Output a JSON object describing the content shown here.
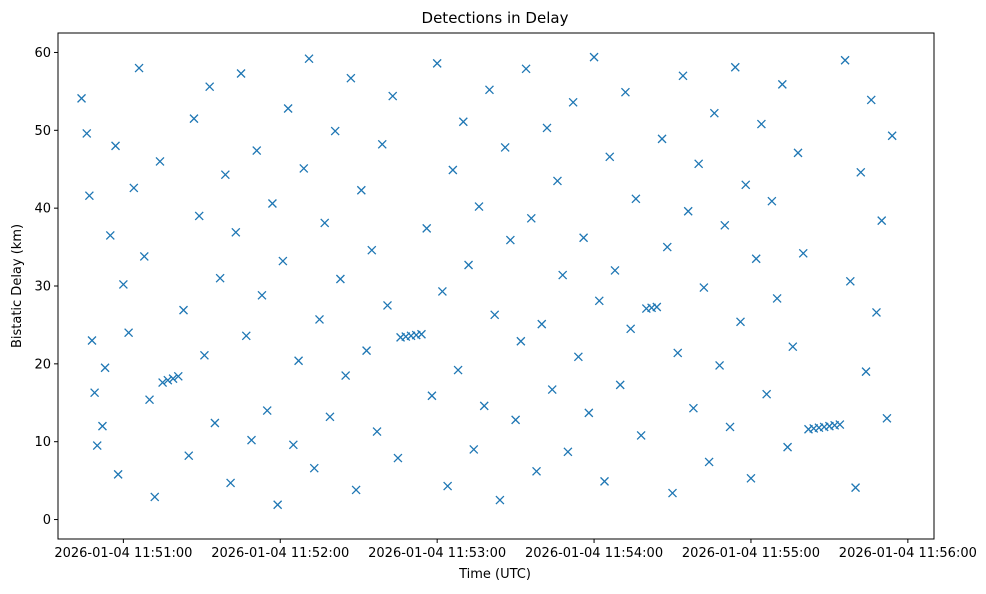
{
  "chart_data": {
    "type": "scatter",
    "title": "Detections in Delay",
    "xlabel": "Time (UTC)",
    "ylabel": "Bistatic Delay (km)",
    "x_axis_type": "time",
    "x_date": "2026-01-04",
    "xlim": [
      "11:50:35",
      "11:56:10"
    ],
    "ylim": [
      -2.5,
      62.5
    ],
    "x_ticks": [
      "2026-01-04 11:51:00",
      "2026-01-04 11:52:00",
      "2026-01-04 11:53:00",
      "2026-01-04 11:54:00",
      "2026-01-04 11:55:00",
      "2026-01-04 11:56:00"
    ],
    "y_ticks": [
      "0",
      "10",
      "20",
      "30",
      "40",
      "50",
      "60"
    ],
    "marker": "x",
    "color": "#1f77b4",
    "grid": false,
    "series": [
      {
        "points": [
          [
            "11:50:44",
            54.1
          ],
          [
            "11:50:46",
            49.6
          ],
          [
            "11:50:47",
            41.6
          ],
          [
            "11:50:48",
            23.0
          ],
          [
            "11:50:49",
            16.3
          ],
          [
            "11:50:50",
            9.5
          ],
          [
            "11:50:52",
            12.0
          ],
          [
            "11:50:53",
            19.5
          ],
          [
            "11:50:55",
            36.5
          ],
          [
            "11:50:57",
            48.0
          ],
          [
            "11:50:58",
            5.8
          ],
          [
            "11:51:00",
            30.2
          ],
          [
            "11:51:02",
            24.0
          ],
          [
            "11:51:04",
            42.6
          ],
          [
            "11:51:06",
            58.0
          ],
          [
            "11:51:08",
            33.8
          ],
          [
            "11:51:10",
            15.4
          ],
          [
            "11:51:12",
            2.9
          ],
          [
            "11:51:14",
            46.0
          ],
          [
            "11:51:15",
            17.6
          ],
          [
            "11:51:17",
            17.9
          ],
          [
            "11:51:19",
            18.1
          ],
          [
            "11:51:21",
            18.4
          ],
          [
            "11:51:23",
            26.9
          ],
          [
            "11:51:25",
            8.2
          ],
          [
            "11:51:27",
            51.5
          ],
          [
            "11:51:29",
            39.0
          ],
          [
            "11:51:31",
            21.1
          ],
          [
            "11:51:33",
            55.6
          ],
          [
            "11:51:35",
            12.4
          ],
          [
            "11:51:37",
            31.0
          ],
          [
            "11:51:39",
            44.3
          ],
          [
            "11:51:41",
            4.7
          ],
          [
            "11:51:43",
            36.9
          ],
          [
            "11:51:45",
            57.3
          ],
          [
            "11:51:47",
            23.6
          ],
          [
            "11:51:49",
            10.2
          ],
          [
            "11:51:51",
            47.4
          ],
          [
            "11:51:53",
            28.8
          ],
          [
            "11:51:55",
            14.0
          ],
          [
            "11:51:57",
            40.6
          ],
          [
            "11:51:59",
            1.9
          ],
          [
            "11:52:01",
            33.2
          ],
          [
            "11:52:03",
            52.8
          ],
          [
            "11:52:05",
            9.6
          ],
          [
            "11:52:07",
            20.4
          ],
          [
            "11:52:09",
            45.1
          ],
          [
            "11:52:11",
            59.2
          ],
          [
            "11:52:13",
            6.6
          ],
          [
            "11:52:15",
            25.7
          ],
          [
            "11:52:17",
            38.1
          ],
          [
            "11:52:19",
            13.2
          ],
          [
            "11:52:21",
            49.9
          ],
          [
            "11:52:23",
            30.9
          ],
          [
            "11:52:25",
            18.5
          ],
          [
            "11:52:27",
            56.7
          ],
          [
            "11:52:29",
            3.8
          ],
          [
            "11:52:31",
            42.3
          ],
          [
            "11:52:33",
            21.7
          ],
          [
            "11:52:35",
            34.6
          ],
          [
            "11:52:37",
            11.3
          ],
          [
            "11:52:39",
            48.2
          ],
          [
            "11:52:41",
            27.5
          ],
          [
            "11:52:43",
            54.4
          ],
          [
            "11:52:45",
            7.9
          ],
          [
            "11:52:46",
            23.4
          ],
          [
            "11:52:48",
            23.5
          ],
          [
            "11:52:50",
            23.6
          ],
          [
            "11:52:52",
            23.7
          ],
          [
            "11:52:54",
            23.8
          ],
          [
            "11:52:56",
            37.4
          ],
          [
            "11:52:58",
            15.9
          ],
          [
            "11:53:00",
            58.6
          ],
          [
            "11:53:02",
            29.3
          ],
          [
            "11:53:04",
            4.3
          ],
          [
            "11:53:06",
            44.9
          ],
          [
            "11:53:08",
            19.2
          ],
          [
            "11:53:10",
            51.1
          ],
          [
            "11:53:12",
            32.7
          ],
          [
            "11:53:14",
            9.0
          ],
          [
            "11:53:16",
            40.2
          ],
          [
            "11:53:18",
            14.6
          ],
          [
            "11:53:20",
            55.2
          ],
          [
            "11:53:22",
            26.3
          ],
          [
            "11:53:24",
            2.5
          ],
          [
            "11:53:26",
            47.8
          ],
          [
            "11:53:28",
            35.9
          ],
          [
            "11:53:30",
            12.8
          ],
          [
            "11:53:32",
            22.9
          ],
          [
            "11:53:34",
            57.9
          ],
          [
            "11:53:36",
            38.7
          ],
          [
            "11:53:38",
            6.2
          ],
          [
            "11:53:40",
            25.1
          ],
          [
            "11:53:42",
            50.3
          ],
          [
            "11:53:44",
            16.7
          ],
          [
            "11:53:46",
            43.5
          ],
          [
            "11:53:48",
            31.4
          ],
          [
            "11:53:50",
            8.7
          ],
          [
            "11:53:52",
            53.6
          ],
          [
            "11:53:54",
            20.9
          ],
          [
            "11:53:56",
            36.2
          ],
          [
            "11:53:58",
            13.7
          ],
          [
            "11:54:00",
            59.4
          ],
          [
            "11:54:02",
            28.1
          ],
          [
            "11:54:04",
            4.9
          ],
          [
            "11:54:06",
            46.6
          ],
          [
            "11:54:08",
            32.0
          ],
          [
            "11:54:10",
            17.3
          ],
          [
            "11:54:12",
            54.9
          ],
          [
            "11:54:14",
            24.5
          ],
          [
            "11:54:16",
            41.2
          ],
          [
            "11:54:18",
            10.8
          ],
          [
            "11:54:20",
            27.1
          ],
          [
            "11:54:22",
            27.2
          ],
          [
            "11:54:24",
            27.3
          ],
          [
            "11:54:26",
            48.9
          ],
          [
            "11:54:28",
            35.0
          ],
          [
            "11:54:30",
            3.4
          ],
          [
            "11:54:32",
            21.4
          ],
          [
            "11:54:34",
            57.0
          ],
          [
            "11:54:36",
            39.6
          ],
          [
            "11:54:38",
            14.3
          ],
          [
            "11:54:40",
            45.7
          ],
          [
            "11:54:42",
            29.8
          ],
          [
            "11:54:44",
            7.4
          ],
          [
            "11:54:46",
            52.2
          ],
          [
            "11:54:48",
            19.8
          ],
          [
            "11:54:50",
            37.8
          ],
          [
            "11:54:52",
            11.9
          ],
          [
            "11:54:54",
            58.1
          ],
          [
            "11:54:56",
            25.4
          ],
          [
            "11:54:58",
            43.0
          ],
          [
            "11:55:00",
            5.3
          ],
          [
            "11:55:02",
            33.5
          ],
          [
            "11:55:04",
            50.8
          ],
          [
            "11:55:06",
            16.1
          ],
          [
            "11:55:08",
            40.9
          ],
          [
            "11:55:10",
            28.4
          ],
          [
            "11:55:12",
            55.9
          ],
          [
            "11:55:14",
            9.3
          ],
          [
            "11:55:16",
            22.2
          ],
          [
            "11:55:18",
            47.1
          ],
          [
            "11:55:20",
            34.2
          ],
          [
            "11:55:22",
            11.6
          ],
          [
            "11:55:24",
            11.7
          ],
          [
            "11:55:26",
            11.8
          ],
          [
            "11:55:28",
            11.9
          ],
          [
            "11:55:30",
            12.0
          ],
          [
            "11:55:32",
            12.1
          ],
          [
            "11:55:34",
            12.2
          ],
          [
            "11:55:36",
            59.0
          ],
          [
            "11:55:38",
            30.6
          ],
          [
            "11:55:40",
            4.1
          ],
          [
            "11:55:42",
            44.6
          ],
          [
            "11:55:44",
            19.0
          ],
          [
            "11:55:46",
            53.9
          ],
          [
            "11:55:48",
            26.6
          ],
          [
            "11:55:50",
            38.4
          ],
          [
            "11:55:52",
            13.0
          ],
          [
            "11:55:54",
            49.3
          ]
        ]
      }
    ]
  }
}
